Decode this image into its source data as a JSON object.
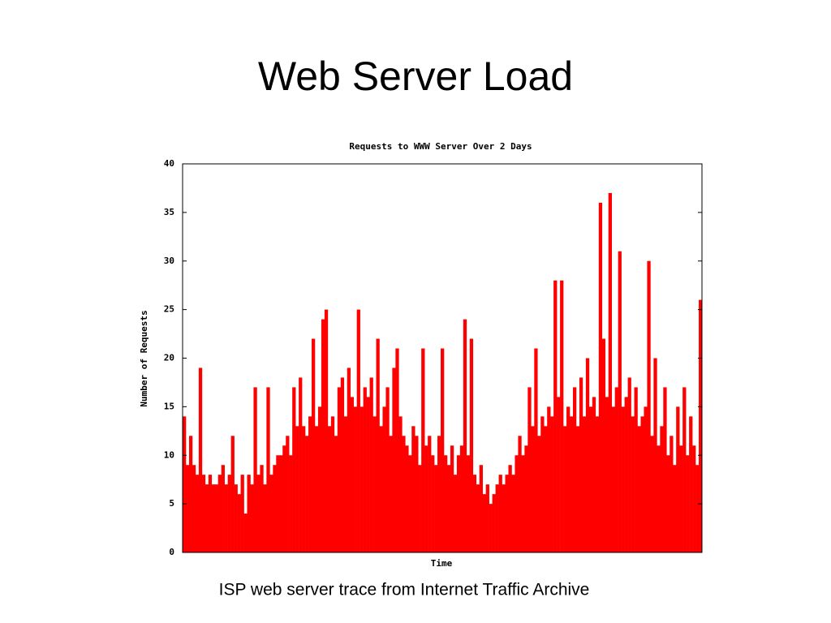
{
  "slide": {
    "title": "Web Server Load",
    "caption": "ISP web server trace from Internet Traffic Archive"
  },
  "chart_data": {
    "type": "bar",
    "title": "Requests to WWW Server Over 2 Days",
    "x_label": "Time",
    "y_label": "Number of Requests",
    "color": "#ff0000",
    "grid": false,
    "ylim": [
      0,
      40
    ],
    "yticks": [
      0,
      5,
      10,
      15,
      20,
      25,
      30,
      35,
      40
    ],
    "values": [
      14,
      9,
      12,
      9,
      8,
      19,
      8,
      7,
      8,
      7,
      7,
      8,
      9,
      7,
      8,
      12,
      7,
      6,
      8,
      4,
      8,
      7,
      17,
      8,
      9,
      7,
      17,
      8,
      9,
      10,
      10,
      11,
      12,
      10,
      17,
      13,
      18,
      13,
      12,
      14,
      22,
      13,
      15,
      24,
      25,
      13,
      14,
      12,
      17,
      18,
      14,
      19,
      16,
      15,
      25,
      15,
      17,
      16,
      18,
      14,
      22,
      13,
      15,
      17,
      12,
      19,
      21,
      14,
      12,
      11,
      10,
      13,
      12,
      9,
      21,
      11,
      12,
      10,
      9,
      12,
      21,
      10,
      9,
      11,
      8,
      10,
      11,
      24,
      10,
      22,
      8,
      7,
      9,
      6,
      7,
      5,
      6,
      7,
      8,
      7,
      8,
      9,
      8,
      10,
      12,
      10,
      11,
      17,
      13,
      21,
      12,
      14,
      13,
      15,
      14,
      28,
      16,
      28,
      13,
      15,
      14,
      17,
      13,
      18,
      14,
      20,
      15,
      16,
      14,
      36,
      22,
      16,
      37,
      15,
      17,
      31,
      15,
      16,
      18,
      14,
      17,
      13,
      14,
      15,
      30,
      12,
      20,
      11,
      13,
      17,
      10,
      12,
      9,
      15,
      11,
      17,
      10,
      14,
      11,
      9,
      26
    ]
  }
}
